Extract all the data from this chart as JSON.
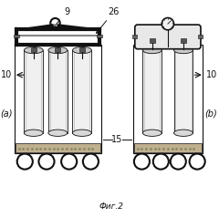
{
  "bg_color": "#ffffff",
  "fig_label": "Фиг.2",
  "label_a": "(a)",
  "label_b": "(b)",
  "label_9": "9",
  "label_26": "26",
  "label_10_left": "10",
  "label_10_right": "10",
  "label_15": "15",
  "blk": "#111111",
  "gray": "#888888",
  "lgray": "#cccccc",
  "cyl_fill": "#e8e8e8",
  "frame_fill": "#d0d0d0"
}
